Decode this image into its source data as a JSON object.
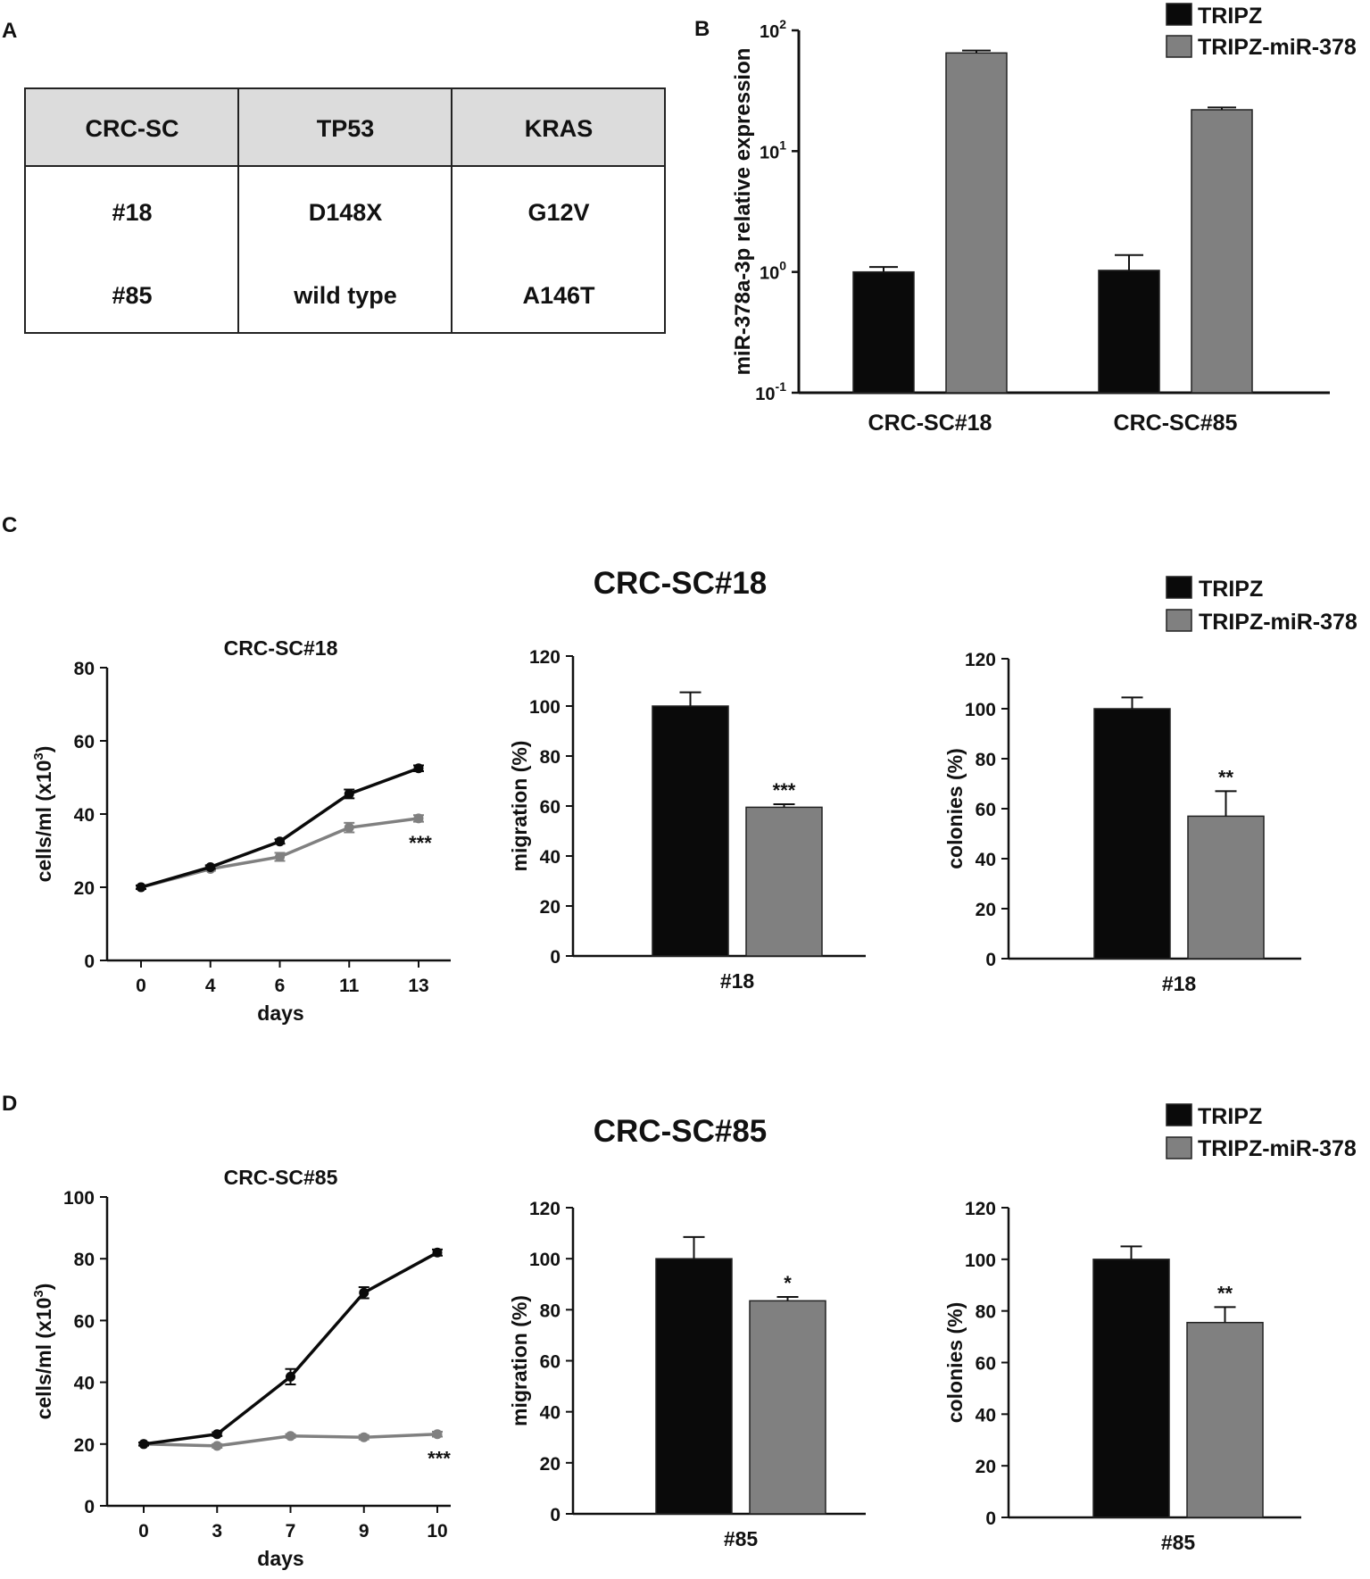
{
  "colors": {
    "black": "#0a0a0a",
    "gray": "#808080",
    "header_bg": "#dcdcdc"
  },
  "panels": {
    "A": "A",
    "B": "B",
    "C": "C",
    "D": "D"
  },
  "table": {
    "headers": [
      "CRC-SC",
      "TP53",
      "KRAS"
    ],
    "rows": [
      [
        "#18",
        "D148X",
        "G12V"
      ],
      [
        "#85",
        "wild type",
        "A146T"
      ]
    ]
  },
  "legend": {
    "tripz": "TRIPZ",
    "mir378": "TRIPZ-miR-378"
  },
  "chart_data": [
    {
      "id": "B",
      "type": "bar",
      "scale": "log",
      "ylabel": "miR-378a-3p relative expression",
      "y_ticks": [
        {
          "base": "10",
          "exp": "-1"
        },
        {
          "base": "10",
          "exp": "0"
        },
        {
          "base": "10",
          "exp": "1"
        },
        {
          "base": "10",
          "exp": "2"
        }
      ],
      "ylim": [
        0.1,
        100
      ],
      "categories": [
        "CRC-SC#18",
        "CRC-SC#85"
      ],
      "series": [
        {
          "name": "TRIPZ",
          "values": [
            1.0,
            1.03
          ],
          "errors": [
            0.1,
            0.35
          ]
        },
        {
          "name": "TRIPZ-miR-378",
          "values": [
            65,
            22
          ],
          "errors": [
            3,
            1
          ]
        }
      ]
    },
    {
      "id": "C",
      "title": "CRC-SC#18",
      "charts": [
        {
          "type": "line",
          "title": "CRC-SC#18",
          "xlabel": "days",
          "ylabel": "cells/ml (x10³)",
          "ylabel_main": "cells/ml (x10",
          "ylabel_sup": "3",
          "ylabel_end": ")",
          "x": [
            "0",
            "4",
            "6",
            "11",
            "13"
          ],
          "ylim": [
            0,
            80
          ],
          "y_ticks": [
            "0",
            "20",
            "40",
            "60",
            "80"
          ],
          "series": [
            {
              "name": "TRIPZ",
              "values": [
                20,
                25.5,
                32.5,
                45.5,
                52.5
              ],
              "errors": [
                0.5,
                0.5,
                0.6,
                1.2,
                0.8
              ]
            },
            {
              "name": "TRIPZ-miR-378",
              "values": [
                20,
                25,
                28.3,
                36.3,
                38.8
              ],
              "errors": [
                0.5,
                0.5,
                1.1,
                1.3,
                0.9
              ]
            }
          ],
          "annotation": "***"
        },
        {
          "type": "bar",
          "ylabel": "migration (%)",
          "category": "#18",
          "ylim": [
            0,
            120
          ],
          "y_ticks": [
            "0",
            "20",
            "40",
            "60",
            "80",
            "100",
            "120"
          ],
          "series": [
            {
              "name": "TRIPZ",
              "value": 100,
              "error": 5.5
            },
            {
              "name": "TRIPZ-miR-378",
              "value": 59.5,
              "error": 1.2
            }
          ],
          "annotation": "***"
        },
        {
          "type": "bar",
          "ylabel": "colonies (%)",
          "category": "#18",
          "ylim": [
            0,
            120
          ],
          "y_ticks": [
            "0",
            "20",
            "40",
            "60",
            "80",
            "100",
            "120"
          ],
          "series": [
            {
              "name": "TRIPZ",
              "value": 100,
              "error": 4.5
            },
            {
              "name": "TRIPZ-miR-378",
              "value": 57,
              "error": 10
            }
          ],
          "annotation": "**"
        }
      ]
    },
    {
      "id": "D",
      "title": "CRC-SC#85",
      "charts": [
        {
          "type": "line",
          "title": "CRC-SC#85",
          "xlabel": "days",
          "ylabel": "cells/ml (x10³)",
          "ylabel_main": "cells/ml (x10",
          "ylabel_sup": "3",
          "ylabel_end": ")",
          "x": [
            "0",
            "3",
            "7",
            "9",
            "10"
          ],
          "ylim": [
            0,
            100
          ],
          "y_ticks": [
            "0",
            "20",
            "40",
            "60",
            "80",
            "100"
          ],
          "series": [
            {
              "name": "TRIPZ",
              "values": [
                20,
                23.2,
                41.8,
                69,
                82
              ],
              "errors": [
                0.5,
                0.6,
                2.5,
                1.8,
                1.0
              ]
            },
            {
              "name": "TRIPZ-miR-378",
              "values": [
                20,
                19.4,
                22.6,
                22.2,
                23.2
              ],
              "errors": [
                0.5,
                0.6,
                0.6,
                0.7,
                0.8
              ]
            }
          ],
          "annotation": "***"
        },
        {
          "type": "bar",
          "ylabel": "migration (%)",
          "category": "#85",
          "ylim": [
            0,
            120
          ],
          "y_ticks": [
            "0",
            "20",
            "40",
            "60",
            "80",
            "100",
            "120"
          ],
          "series": [
            {
              "name": "TRIPZ",
              "value": 100,
              "error": 8.5
            },
            {
              "name": "TRIPZ-miR-378",
              "value": 83.5,
              "error": 1.5
            }
          ],
          "annotation": "*"
        },
        {
          "type": "bar",
          "ylabel": "colonies (%)",
          "category": "#85",
          "ylim": [
            0,
            120
          ],
          "y_ticks": [
            "0",
            "20",
            "40",
            "60",
            "80",
            "100",
            "120"
          ],
          "series": [
            {
              "name": "TRIPZ",
              "value": 100,
              "error": 5
            },
            {
              "name": "TRIPZ-miR-378",
              "value": 75.5,
              "error": 6
            }
          ],
          "annotation": "**"
        }
      ]
    }
  ]
}
